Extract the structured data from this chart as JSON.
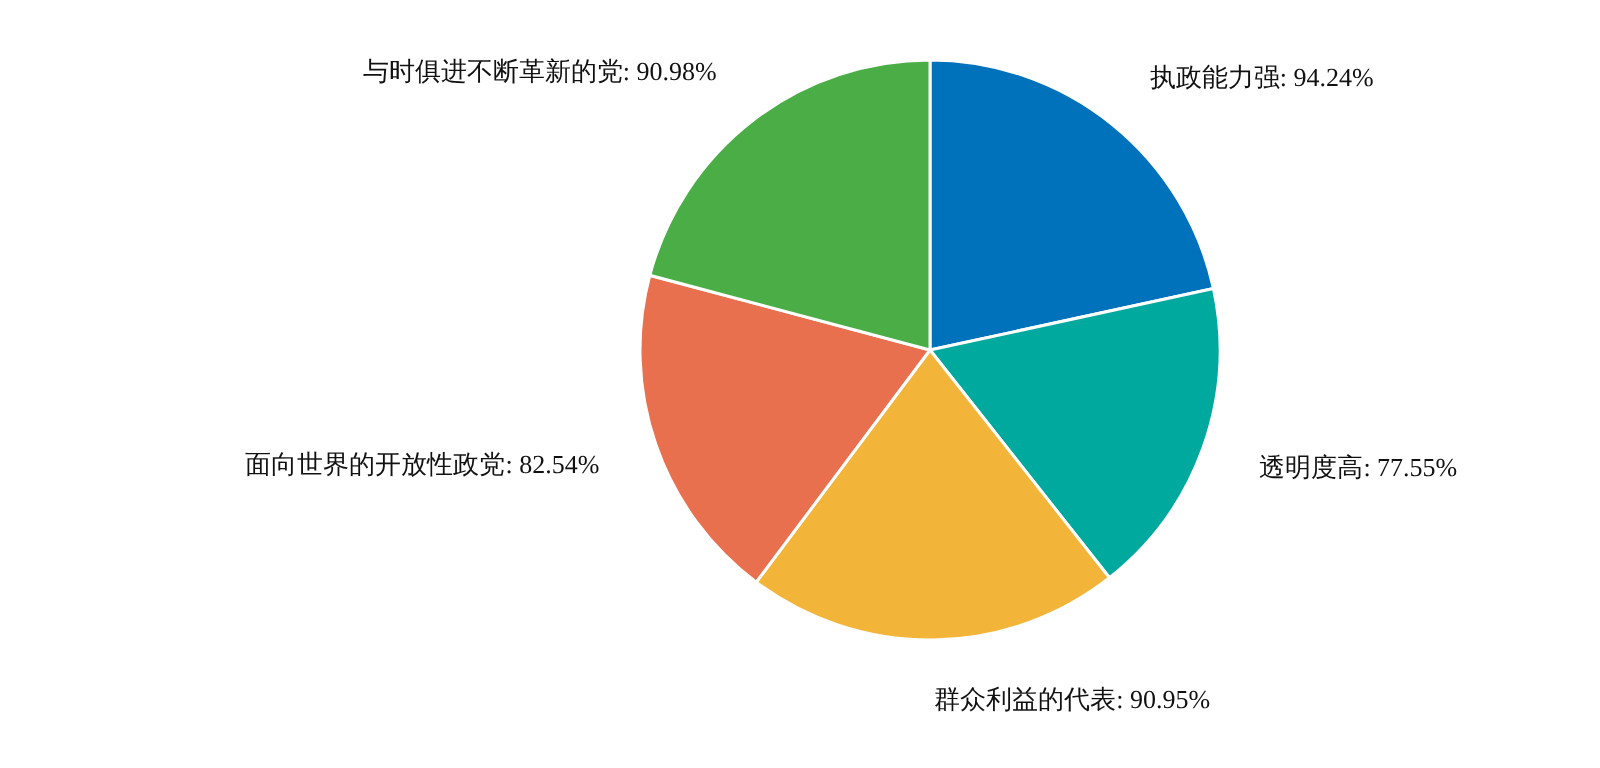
{
  "chart_data": {
    "type": "pie",
    "categories": [
      "执政能力强",
      "透明度高",
      "群众利益的代表",
      "面向世界的开放性政党",
      "与时俱进不断革新的党"
    ],
    "values": [
      94.24,
      77.55,
      90.95,
      82.54,
      90.98
    ],
    "value_labels": [
      "94.24%",
      "77.55%",
      "90.95%",
      "82.54%",
      "90.98%"
    ],
    "colors": [
      "#0072bc",
      "#00a99d",
      "#f2b53a",
      "#e8704f",
      "#4aad45"
    ]
  }
}
